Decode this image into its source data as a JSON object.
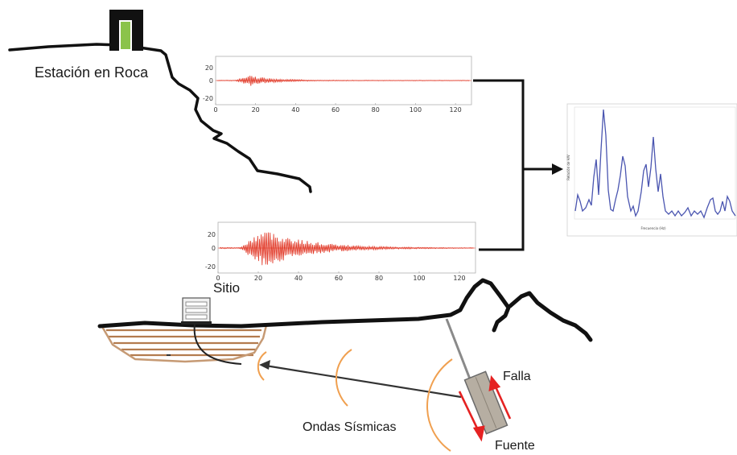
{
  "labels": {
    "rock_station": "Estación en Roca",
    "site": "Sitio",
    "fault": "Falla",
    "seismic_waves": "Ondas Sísmicas",
    "source": "Fuente"
  },
  "seismogram_rock": {
    "x_ticks": [
      "0",
      "20",
      "40",
      "60",
      "80",
      "100",
      "120"
    ],
    "y_ticks": [
      "20",
      "0",
      "-20"
    ]
  },
  "seismogram_site": {
    "x_ticks": [
      "0",
      "20",
      "40",
      "60",
      "80",
      "100",
      "120"
    ],
    "y_ticks": [
      "20",
      "0",
      "-20"
    ]
  },
  "spectral_ratio": {
    "xlabel": "Frecuencia (Hz)",
    "ylabel": "Relación de H/V"
  },
  "colors": {
    "terrain": "#111111",
    "signal": "#e0301e",
    "spectrum": "#4a55b0",
    "sediment": "#b37b4e",
    "wavefront": "#f0a050",
    "fault_arrow": "#e52222",
    "station_green": "#8bc34a"
  }
}
